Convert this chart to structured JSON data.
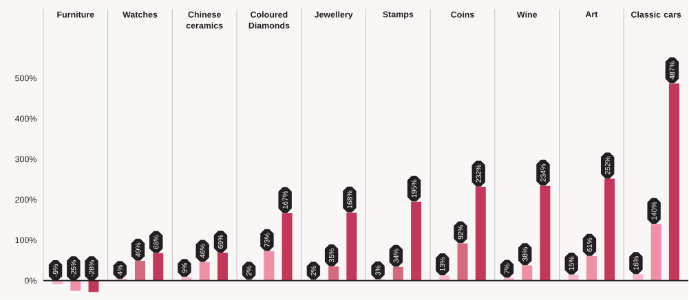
{
  "chart_data": {
    "type": "bar",
    "categories": [
      "Furniture",
      "Watches",
      "Chinese ceramics",
      "Coloured Diamonds",
      "Jewellery",
      "Stamps",
      "Coins",
      "Wine",
      "Art",
      "Classic cars"
    ],
    "ylim": [
      -47,
      671
    ],
    "yticks": [
      {
        "value": 0,
        "label": "0%"
      },
      {
        "value": 100,
        "label": "100%"
      },
      {
        "value": 200,
        "label": "200%"
      },
      {
        "value": 300,
        "label": "300%"
      },
      {
        "value": 400,
        "label": "400%"
      },
      {
        "value": 500,
        "label": "500%"
      }
    ],
    "series": [
      {
        "color": "#f7b6cb",
        "values": [
          -9,
          4,
          9,
          2,
          2,
          3,
          13,
          7,
          15,
          16
        ],
        "value_labels": [
          "-9%",
          "4%",
          "9%",
          "2%",
          "2%",
          "3%",
          "13%",
          "7%",
          "15%",
          "16%"
        ]
      },
      {
        "colors": [
          "#ef8fa8",
          "#d46a7e",
          "#ef8fa8",
          "#ef8fa8",
          "#d46a7e",
          "#d46a7e",
          "#d46a7e",
          "#ef8fa8",
          "#ef8fa8",
          "#ef8fa8"
        ],
        "values": [
          -25,
          49,
          46,
          73,
          35,
          34,
          92,
          38,
          61,
          140
        ],
        "value_labels": [
          "-25%",
          "49%",
          "46%",
          "73%",
          "35%",
          "34%",
          "92%",
          "38%",
          "61%",
          "140%"
        ]
      },
      {
        "color": "#c2375a",
        "values": [
          -28,
          68,
          69,
          167,
          168,
          195,
          232,
          234,
          252,
          487
        ],
        "value_labels": [
          "-28%",
          "68%",
          "69%",
          "167%",
          "168%",
          "195%",
          "232%",
          "234%",
          "252%",
          "487%"
        ]
      }
    ]
  }
}
